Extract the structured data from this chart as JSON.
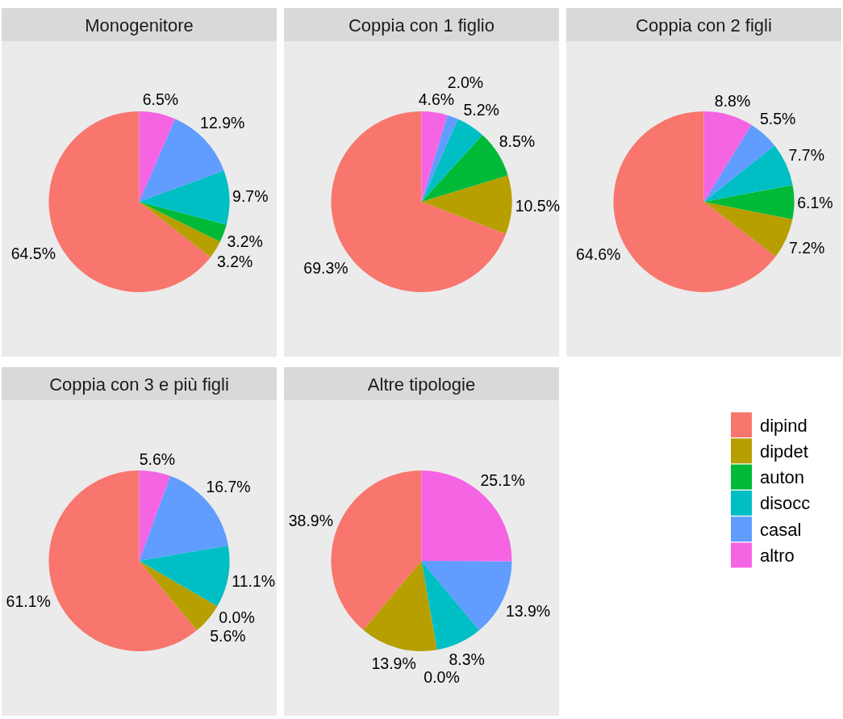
{
  "chart_data": [
    {
      "type": "pie",
      "title": "Monogenitore",
      "categories": [
        null,
        null,
        null,
        null,
        null,
        null
      ],
      "values": [
        64.5,
        3.2,
        3.2,
        9.7,
        12.9,
        6.5
      ],
      "value_labels": [
        "64.5%",
        "3.2%",
        "3.2%",
        "9.7%",
        "12.9%",
        "6.5%"
      ],
      "colors": [
        "#f8766d",
        "#b79f00",
        "#00ba38",
        "#00bfc4",
        "#619cff",
        "#f564e3"
      ]
    },
    {
      "type": "pie",
      "title": "Coppia con 1 figlio",
      "categories": [
        null,
        null,
        null,
        null,
        null,
        null
      ],
      "values": [
        69.3,
        10.5,
        8.5,
        5.2,
        2.0,
        4.6
      ],
      "value_labels": [
        "69.3%",
        "10.5%",
        "8.5%",
        "5.2%",
        "2.0%",
        "4.6%"
      ],
      "colors": [
        "#f8766d",
        "#b79f00",
        "#00ba38",
        "#00bfc4",
        "#619cff",
        "#f564e3"
      ]
    },
    {
      "type": "pie",
      "title": "Coppia con 2 figli",
      "categories": [
        null,
        null,
        null,
        null,
        null,
        null
      ],
      "values": [
        64.6,
        7.2,
        6.1,
        7.7,
        5.5,
        8.8
      ],
      "value_labels": [
        "64.6%",
        "7.2%",
        "6.1%",
        "7.7%",
        "5.5%",
        "8.8%"
      ],
      "colors": [
        "#f8766d",
        "#b79f00",
        "#00ba38",
        "#00bfc4",
        "#619cff",
        "#f564e3"
      ]
    },
    {
      "type": "pie",
      "title": "Coppia con 3 e più figli",
      "categories": [
        null,
        null,
        null,
        null,
        null,
        null
      ],
      "values": [
        61.1,
        5.6,
        0.0,
        11.1,
        16.7,
        5.6
      ],
      "value_labels": [
        "61.1%",
        "5.6%",
        "0.0%",
        "11.1%",
        "16.7%",
        "5.6%"
      ],
      "colors": [
        "#f8766d",
        "#b79f00",
        null,
        "#00bfc4",
        "#619cff",
        "#f564e3"
      ]
    },
    {
      "type": "pie",
      "title": "Altre tipologie",
      "categories": [
        "dipind",
        "dipdet",
        "auton",
        "disocc",
        "casal",
        "altro"
      ],
      "values": [
        38.9,
        13.9,
        0.0,
        8.3,
        13.9,
        25.1
      ],
      "value_labels": [
        "38.9%",
        "13.9%",
        "0.0%",
        "8.3%",
        "13.9%",
        "25.1%"
      ],
      "colors": [
        "#f8766d",
        "#b79f00",
        "#00ba38",
        "#00bfc4",
        "#619cff",
        "#f564e3"
      ],
      "legend": "right"
    }
  ]
}
